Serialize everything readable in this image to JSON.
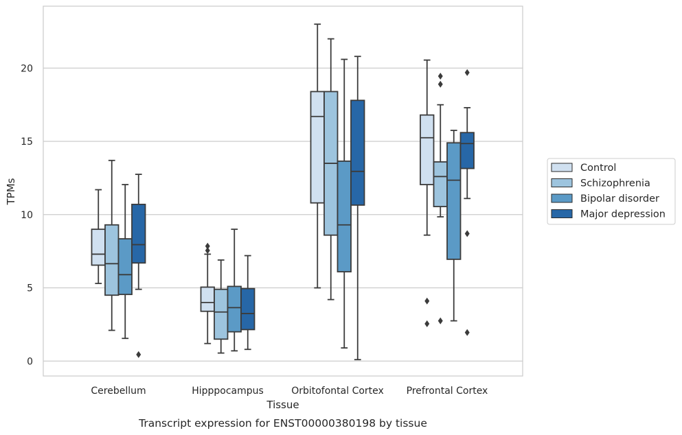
{
  "chart_data": {
    "type": "box",
    "title": "",
    "caption": "Transcript expression for ENST00000380198 by tissue",
    "xlabel": "Tissue",
    "ylabel": "TPMs",
    "ylim": [
      -1,
      24
    ],
    "yticks": [
      0,
      5,
      10,
      15,
      20
    ],
    "grid": "horizontal",
    "legend_position": "right",
    "categories": [
      "Cerebellum",
      "Hipppocampus",
      "Orbitofontal Cortex",
      "Prefrontal Cortex"
    ],
    "series": [
      {
        "name": "Control",
        "color": "#d0e0f0",
        "boxes": [
          {
            "whisker_low": 5.3,
            "q1": 6.55,
            "median": 7.3,
            "q3": 9.0,
            "whisker_high": 11.7,
            "outliers": []
          },
          {
            "whisker_low": 1.2,
            "q1": 3.4,
            "median": 4.0,
            "q3": 5.05,
            "whisker_high": 7.3,
            "outliers": [
              7.55,
              7.85
            ]
          },
          {
            "whisker_low": 5.0,
            "q1": 10.8,
            "median": 16.7,
            "q3": 18.4,
            "whisker_high": 23.0,
            "outliers": []
          },
          {
            "whisker_low": 8.6,
            "q1": 12.05,
            "median": 15.25,
            "q3": 16.8,
            "whisker_high": 20.55,
            "outliers": [
              4.1,
              2.55
            ]
          }
        ]
      },
      {
        "name": "Schizophrenia",
        "color": "#9dc4de",
        "boxes": [
          {
            "whisker_low": 2.1,
            "q1": 4.5,
            "median": 6.65,
            "q3": 9.3,
            "whisker_high": 13.7,
            "outliers": []
          },
          {
            "whisker_low": 0.55,
            "q1": 1.5,
            "median": 3.35,
            "q3": 4.9,
            "whisker_high": 6.9,
            "outliers": []
          },
          {
            "whisker_low": 4.2,
            "q1": 8.6,
            "median": 13.5,
            "q3": 18.4,
            "whisker_high": 22.0,
            "outliers": []
          },
          {
            "whisker_low": 9.85,
            "q1": 10.55,
            "median": 12.6,
            "q3": 13.6,
            "whisker_high": 17.5,
            "outliers": [
              18.9,
              19.45,
              2.75
            ]
          }
        ]
      },
      {
        "name": "Bipolar disorder",
        "color": "#5b9ac6",
        "boxes": [
          {
            "whisker_low": 1.55,
            "q1": 4.55,
            "median": 5.9,
            "q3": 8.35,
            "whisker_high": 12.05,
            "outliers": []
          },
          {
            "whisker_low": 0.7,
            "q1": 2.0,
            "median": 3.65,
            "q3": 5.1,
            "whisker_high": 9.0,
            "outliers": []
          },
          {
            "whisker_low": 0.9,
            "q1": 6.1,
            "median": 9.3,
            "q3": 13.65,
            "whisker_high": 20.6,
            "outliers": []
          },
          {
            "whisker_low": 2.75,
            "q1": 6.95,
            "median": 12.35,
            "q3": 14.9,
            "whisker_high": 15.75,
            "outliers": []
          }
        ]
      },
      {
        "name": "Major depression",
        "color": "#2767a7",
        "boxes": [
          {
            "whisker_low": 4.9,
            "q1": 6.7,
            "median": 7.95,
            "q3": 10.7,
            "whisker_high": 12.75,
            "outliers": [
              0.45
            ]
          },
          {
            "whisker_low": 0.8,
            "q1": 2.15,
            "median": 3.25,
            "q3": 4.95,
            "whisker_high": 7.2,
            "outliers": []
          },
          {
            "whisker_low": 0.1,
            "q1": 10.65,
            "median": 12.95,
            "q3": 17.8,
            "whisker_high": 20.8,
            "outliers": []
          },
          {
            "whisker_low": 11.1,
            "q1": 13.15,
            "median": 14.85,
            "q3": 15.6,
            "whisker_high": 17.3,
            "outliers": [
              19.7,
              8.7,
              1.95
            ]
          }
        ]
      }
    ]
  }
}
